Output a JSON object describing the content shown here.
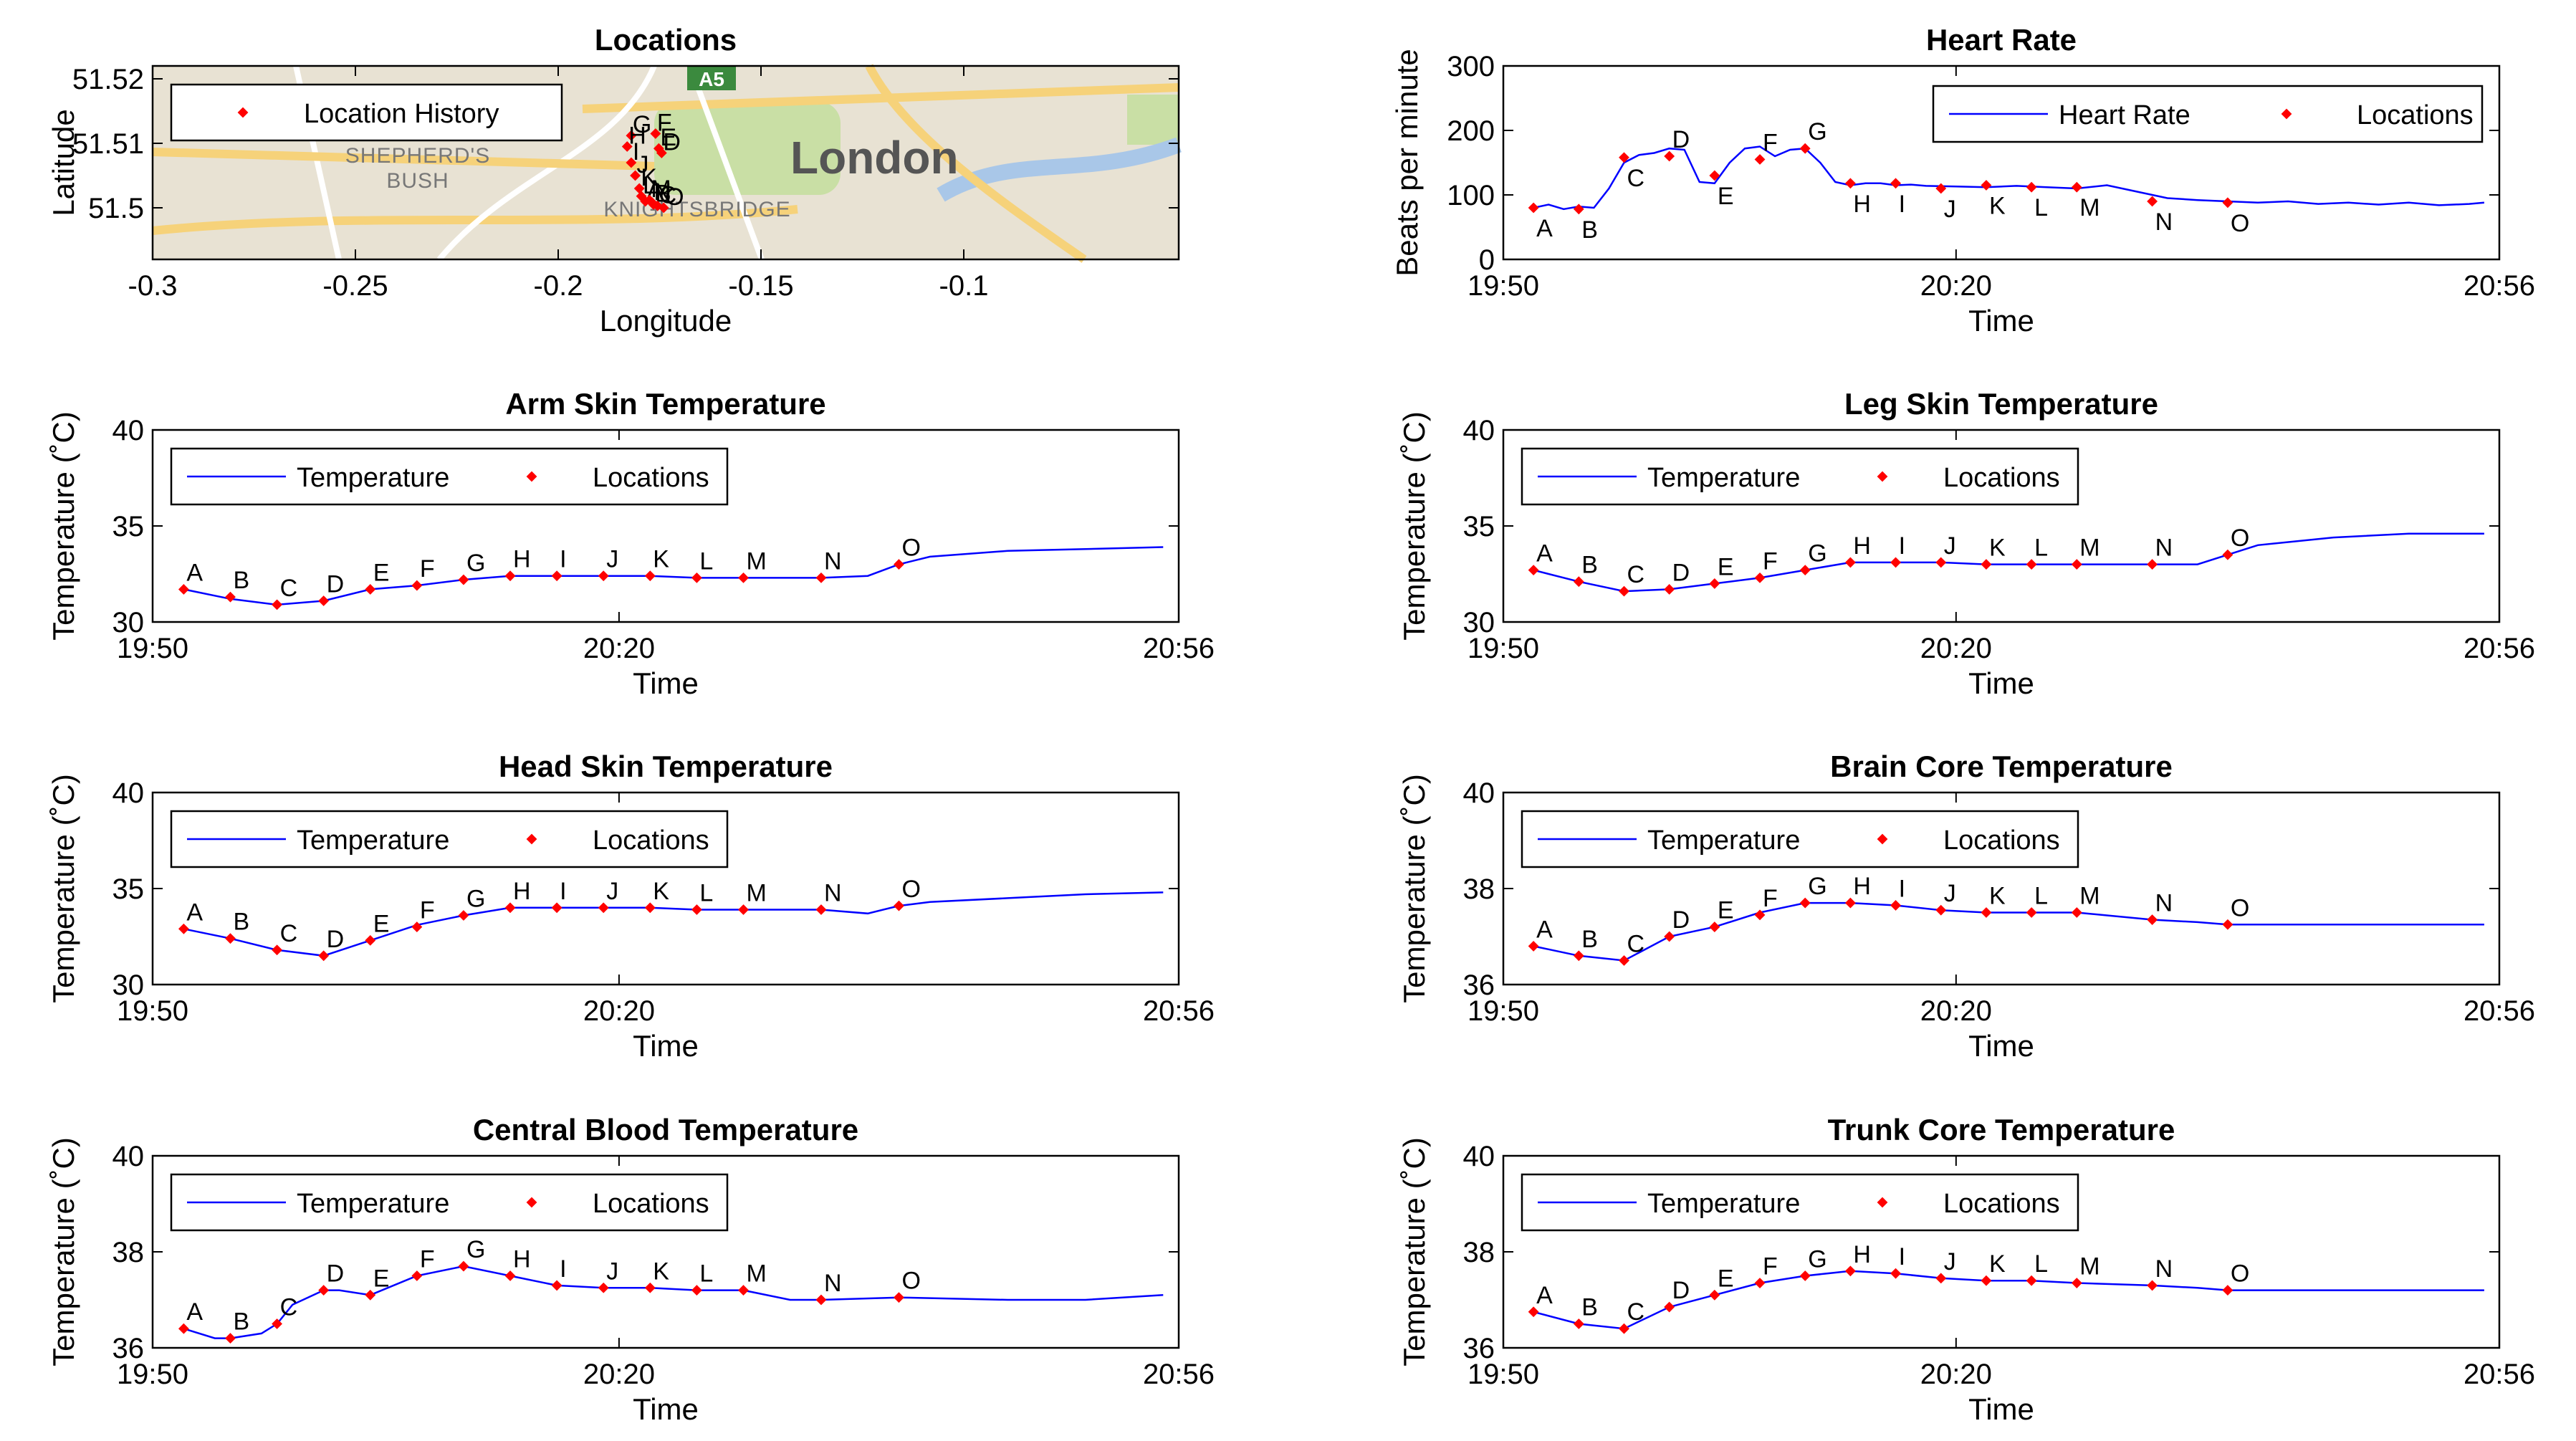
{
  "time_ticks": [
    "19:50",
    "20:20",
    "20:56"
  ],
  "location_letters": [
    "A",
    "B",
    "C",
    "D",
    "E",
    "F",
    "G",
    "H",
    "I",
    "J",
    "K",
    "L",
    "M",
    "N",
    "O"
  ],
  "map_labels": {
    "city": "London",
    "area1": "SHEPHERD'S",
    "area2": "BUSH",
    "area3": "KNIGHTSBRIDGE",
    "road": "A5"
  },
  "colors": {
    "line": "#0000ff",
    "marker": "#ff0000",
    "axis": "#000000"
  },
  "chart_data": [
    {
      "id": "locations",
      "type": "scatter",
      "title": "Locations",
      "xlabel": "Longitude",
      "ylabel": "Latitude",
      "xlim": [
        -0.3,
        -0.047
      ],
      "ylim": [
        51.492,
        51.522
      ],
      "xticks": [
        "-0.3",
        "-0.25",
        "-0.2",
        "-0.15",
        "-0.1"
      ],
      "xtick_values": [
        -0.3,
        -0.25,
        -0.2,
        -0.15,
        -0.1
      ],
      "yticks": [
        "51.5",
        "51.51",
        "51.52"
      ],
      "ytick_values": [
        51.5,
        51.51,
        51.52
      ],
      "legend": [
        "Location History"
      ],
      "points": [
        {
          "label": "A",
          "x": -0.1785,
          "y": 51.501
        },
        {
          "label": "B",
          "x": -0.1765,
          "y": 51.5005
        },
        {
          "label": "C",
          "x": -0.1755,
          "y": 51.5003
        },
        {
          "label": "D",
          "x": -0.1745,
          "y": 51.5085
        },
        {
          "label": "E",
          "x": -0.1752,
          "y": 51.5092
        },
        {
          "label": "F",
          "x": -0.176,
          "y": 51.5115
        },
        {
          "label": "G",
          "x": -0.182,
          "y": 51.5112
        },
        {
          "label": "H",
          "x": -0.183,
          "y": 51.5095
        },
        {
          "label": "I",
          "x": -0.182,
          "y": 51.507
        },
        {
          "label": "J",
          "x": -0.181,
          "y": 51.505
        },
        {
          "label": "K",
          "x": -0.18,
          "y": 51.503
        },
        {
          "label": "L",
          "x": -0.1795,
          "y": 51.5018
        },
        {
          "label": "M",
          "x": -0.1775,
          "y": 51.5012
        },
        {
          "label": "N",
          "x": -0.1768,
          "y": 51.5008
        },
        {
          "label": "O",
          "x": -0.174,
          "y": 51.5
        }
      ]
    },
    {
      "id": "heart_rate",
      "type": "line",
      "title": "Heart Rate",
      "xlabel": "Time",
      "ylabel": "Beats per minute",
      "xlim": [
        0,
        66
      ],
      "ylim": [
        0,
        300
      ],
      "yticks": [
        "0",
        "100",
        "200",
        "300"
      ],
      "ytick_values": [
        0,
        100,
        200,
        300
      ],
      "legend": [
        "Heart Rate",
        "Locations"
      ],
      "legend_box": "wide",
      "series_x": [
        2,
        3,
        4,
        5,
        6,
        7,
        8,
        9,
        10,
        11,
        12,
        13,
        14,
        15,
        16,
        17,
        18,
        19,
        20,
        21,
        22,
        23,
        24,
        25,
        26,
        27,
        28,
        30,
        32,
        34,
        36,
        38,
        40,
        42,
        44,
        46,
        48,
        50,
        52,
        54,
        56,
        58,
        60,
        62,
        64,
        65
      ],
      "series_y": [
        80,
        85,
        78,
        82,
        80,
        110,
        150,
        162,
        165,
        172,
        170,
        120,
        118,
        150,
        172,
        175,
        160,
        170,
        172,
        150,
        120,
        115,
        118,
        118,
        115,
        116,
        114,
        113,
        112,
        114,
        112,
        110,
        115,
        105,
        95,
        92,
        90,
        88,
        90,
        86,
        88,
        85,
        88,
        84,
        86,
        88
      ],
      "markers_x": [
        2,
        5,
        8,
        11,
        14,
        17,
        20,
        23,
        26,
        29,
        32,
        35,
        38,
        43,
        48
      ],
      "markers_y": [
        80,
        78,
        158,
        160,
        130,
        155,
        172,
        118,
        118,
        110,
        115,
        112,
        112,
        90,
        88
      ],
      "label_offsets": [
        [
          0,
          -1
        ],
        [
          0,
          -1
        ],
        [
          0,
          -1
        ],
        [
          1,
          1
        ],
        [
          0,
          -1
        ],
        [
          0,
          1
        ],
        [
          1,
          1
        ],
        [
          0,
          -1
        ],
        [
          0,
          -1
        ],
        [
          0,
          -1
        ],
        [
          0,
          -1
        ],
        [
          0,
          -1
        ],
        [
          0,
          -1
        ],
        [
          0,
          -1
        ],
        [
          0,
          -1
        ]
      ]
    },
    {
      "id": "arm_skin",
      "type": "line",
      "title": "Arm Skin Temperature",
      "xlabel": "Time",
      "ylabel": "Temperature (˚C)",
      "xlim": [
        0,
        66
      ],
      "ylim": [
        30,
        40
      ],
      "yticks": [
        "30",
        "35",
        "40"
      ],
      "ytick_values": [
        30,
        35,
        40
      ],
      "legend": [
        "Temperature",
        "Locations"
      ],
      "series_x": [
        2,
        5,
        8,
        11,
        14,
        17,
        20,
        23,
        26,
        29,
        32,
        35,
        38,
        43,
        46,
        48,
        50,
        55,
        60,
        65
      ],
      "series_y": [
        31.7,
        31.2,
        30.9,
        31.1,
        31.7,
        31.9,
        32.2,
        32.4,
        32.4,
        32.4,
        32.4,
        32.3,
        32.3,
        32.3,
        32.4,
        33.0,
        33.4,
        33.7,
        33.8,
        33.9
      ],
      "markers_x": [
        2,
        5,
        8,
        11,
        14,
        17,
        20,
        23,
        26,
        29,
        32,
        35,
        38,
        43,
        48
      ],
      "markers_y": [
        31.7,
        31.3,
        30.9,
        31.1,
        31.7,
        31.9,
        32.2,
        32.4,
        32.4,
        32.4,
        32.4,
        32.3,
        32.3,
        32.3,
        33.0
      ]
    },
    {
      "id": "leg_skin",
      "type": "line",
      "title": "Leg Skin Temperature",
      "xlabel": "Time",
      "ylabel": "Temperature (˚C)",
      "xlim": [
        0,
        66
      ],
      "ylim": [
        30,
        40
      ],
      "yticks": [
        "30",
        "35",
        "40"
      ],
      "ytick_values": [
        30,
        35,
        40
      ],
      "legend": [
        "Temperature",
        "Locations"
      ],
      "series_x": [
        2,
        5,
        8,
        11,
        14,
        17,
        20,
        23,
        26,
        29,
        32,
        35,
        38,
        43,
        46,
        48,
        50,
        55,
        60,
        65
      ],
      "series_y": [
        32.7,
        32.1,
        31.6,
        31.7,
        32.0,
        32.3,
        32.7,
        33.1,
        33.1,
        33.1,
        33.0,
        33.0,
        33.0,
        33.0,
        33.0,
        33.5,
        34.0,
        34.4,
        34.6,
        34.6
      ],
      "markers_x": [
        2,
        5,
        8,
        11,
        14,
        17,
        20,
        23,
        26,
        29,
        32,
        35,
        38,
        43,
        48
      ],
      "markers_y": [
        32.7,
        32.1,
        31.6,
        31.7,
        32.0,
        32.3,
        32.7,
        33.1,
        33.1,
        33.1,
        33.0,
        33.0,
        33.0,
        33.0,
        33.5
      ]
    },
    {
      "id": "head_skin",
      "type": "line",
      "title": "Head Skin Temperature",
      "xlabel": "Time",
      "ylabel": "Temperature (˚C)",
      "xlim": [
        0,
        66
      ],
      "ylim": [
        30,
        40
      ],
      "yticks": [
        "30",
        "35",
        "40"
      ],
      "ytick_values": [
        30,
        35,
        40
      ],
      "legend": [
        "Temperature",
        "Locations"
      ],
      "series_x": [
        2,
        5,
        8,
        11,
        14,
        17,
        20,
        23,
        26,
        29,
        32,
        35,
        38,
        43,
        46,
        48,
        50,
        55,
        60,
        65
      ],
      "series_y": [
        32.9,
        32.4,
        31.8,
        31.5,
        32.3,
        33.1,
        33.6,
        34.0,
        34.0,
        34.0,
        34.0,
        33.9,
        33.9,
        33.9,
        33.7,
        34.1,
        34.3,
        34.5,
        34.7,
        34.8
      ],
      "markers_x": [
        2,
        5,
        8,
        11,
        14,
        17,
        20,
        23,
        26,
        29,
        32,
        35,
        38,
        43,
        48
      ],
      "markers_y": [
        32.9,
        32.4,
        31.8,
        31.5,
        32.3,
        33.0,
        33.6,
        34.0,
        34.0,
        34.0,
        34.0,
        33.9,
        33.9,
        33.9,
        34.1
      ]
    },
    {
      "id": "brain_core",
      "type": "line",
      "title": "Brain Core Temperature",
      "xlabel": "Time",
      "ylabel": "Temperature (˚C)",
      "xlim": [
        0,
        66
      ],
      "ylim": [
        36,
        40
      ],
      "yticks": [
        "36",
        "38",
        "40"
      ],
      "ytick_values": [
        36,
        38,
        40
      ],
      "legend": [
        "Temperature",
        "Locations"
      ],
      "series_x": [
        2,
        5,
        8,
        11,
        14,
        17,
        20,
        23,
        26,
        29,
        32,
        35,
        38,
        43,
        46,
        48,
        50,
        55,
        60,
        65
      ],
      "series_y": [
        36.8,
        36.6,
        36.5,
        37.0,
        37.2,
        37.5,
        37.7,
        37.7,
        37.65,
        37.55,
        37.5,
        37.5,
        37.5,
        37.35,
        37.3,
        37.25,
        37.25,
        37.25,
        37.25,
        37.25
      ],
      "markers_x": [
        2,
        5,
        8,
        11,
        14,
        17,
        20,
        23,
        26,
        29,
        32,
        35,
        38,
        43,
        48
      ],
      "markers_y": [
        36.8,
        36.6,
        36.5,
        37.0,
        37.2,
        37.45,
        37.7,
        37.7,
        37.65,
        37.55,
        37.5,
        37.5,
        37.5,
        37.35,
        37.25
      ]
    },
    {
      "id": "central_blood",
      "type": "line",
      "title": "Central Blood Temperature",
      "xlabel": "Time",
      "ylabel": "Temperature (˚C)",
      "xlim": [
        0,
        66
      ],
      "ylim": [
        36,
        40
      ],
      "yticks": [
        "36",
        "38",
        "40"
      ],
      "ytick_values": [
        36,
        38,
        40
      ],
      "legend": [
        "Temperature",
        "Locations"
      ],
      "series_x": [
        2,
        4,
        5,
        7,
        8,
        9,
        11,
        12,
        14,
        17,
        20,
        23,
        26,
        29,
        32,
        35,
        38,
        41,
        43,
        48,
        55,
        60,
        65
      ],
      "series_y": [
        36.4,
        36.2,
        36.2,
        36.3,
        36.5,
        36.9,
        37.2,
        37.2,
        37.1,
        37.5,
        37.7,
        37.5,
        37.3,
        37.25,
        37.25,
        37.2,
        37.2,
        37.0,
        37.0,
        37.05,
        37.0,
        37.0,
        37.1
      ],
      "markers_x": [
        2,
        5,
        8,
        11,
        14,
        17,
        20,
        23,
        26,
        29,
        32,
        35,
        38,
        43,
        48
      ],
      "markers_y": [
        36.4,
        36.2,
        36.5,
        37.2,
        37.1,
        37.5,
        37.7,
        37.5,
        37.3,
        37.25,
        37.25,
        37.2,
        37.2,
        37.0,
        37.05
      ]
    },
    {
      "id": "trunk_core",
      "type": "line",
      "title": "Trunk Core Temperature",
      "xlabel": "Time",
      "ylabel": "Temperature (˚C)",
      "xlim": [
        0,
        66
      ],
      "ylim": [
        36,
        40
      ],
      "yticks": [
        "36",
        "38",
        "40"
      ],
      "ytick_values": [
        36,
        38,
        40
      ],
      "legend": [
        "Temperature",
        "Locations"
      ],
      "series_x": [
        2,
        5,
        8,
        11,
        14,
        17,
        20,
        23,
        26,
        29,
        32,
        35,
        38,
        43,
        46,
        48,
        50,
        55,
        60,
        65
      ],
      "series_y": [
        36.75,
        36.5,
        36.4,
        36.85,
        37.1,
        37.35,
        37.5,
        37.6,
        37.55,
        37.45,
        37.4,
        37.4,
        37.35,
        37.3,
        37.25,
        37.2,
        37.2,
        37.2,
        37.2,
        37.2
      ],
      "markers_x": [
        2,
        5,
        8,
        11,
        14,
        17,
        20,
        23,
        26,
        29,
        32,
        35,
        38,
        43,
        48
      ],
      "markers_y": [
        36.75,
        36.5,
        36.4,
        36.85,
        37.1,
        37.35,
        37.5,
        37.6,
        37.55,
        37.45,
        37.4,
        37.4,
        37.35,
        37.3,
        37.2
      ]
    }
  ]
}
